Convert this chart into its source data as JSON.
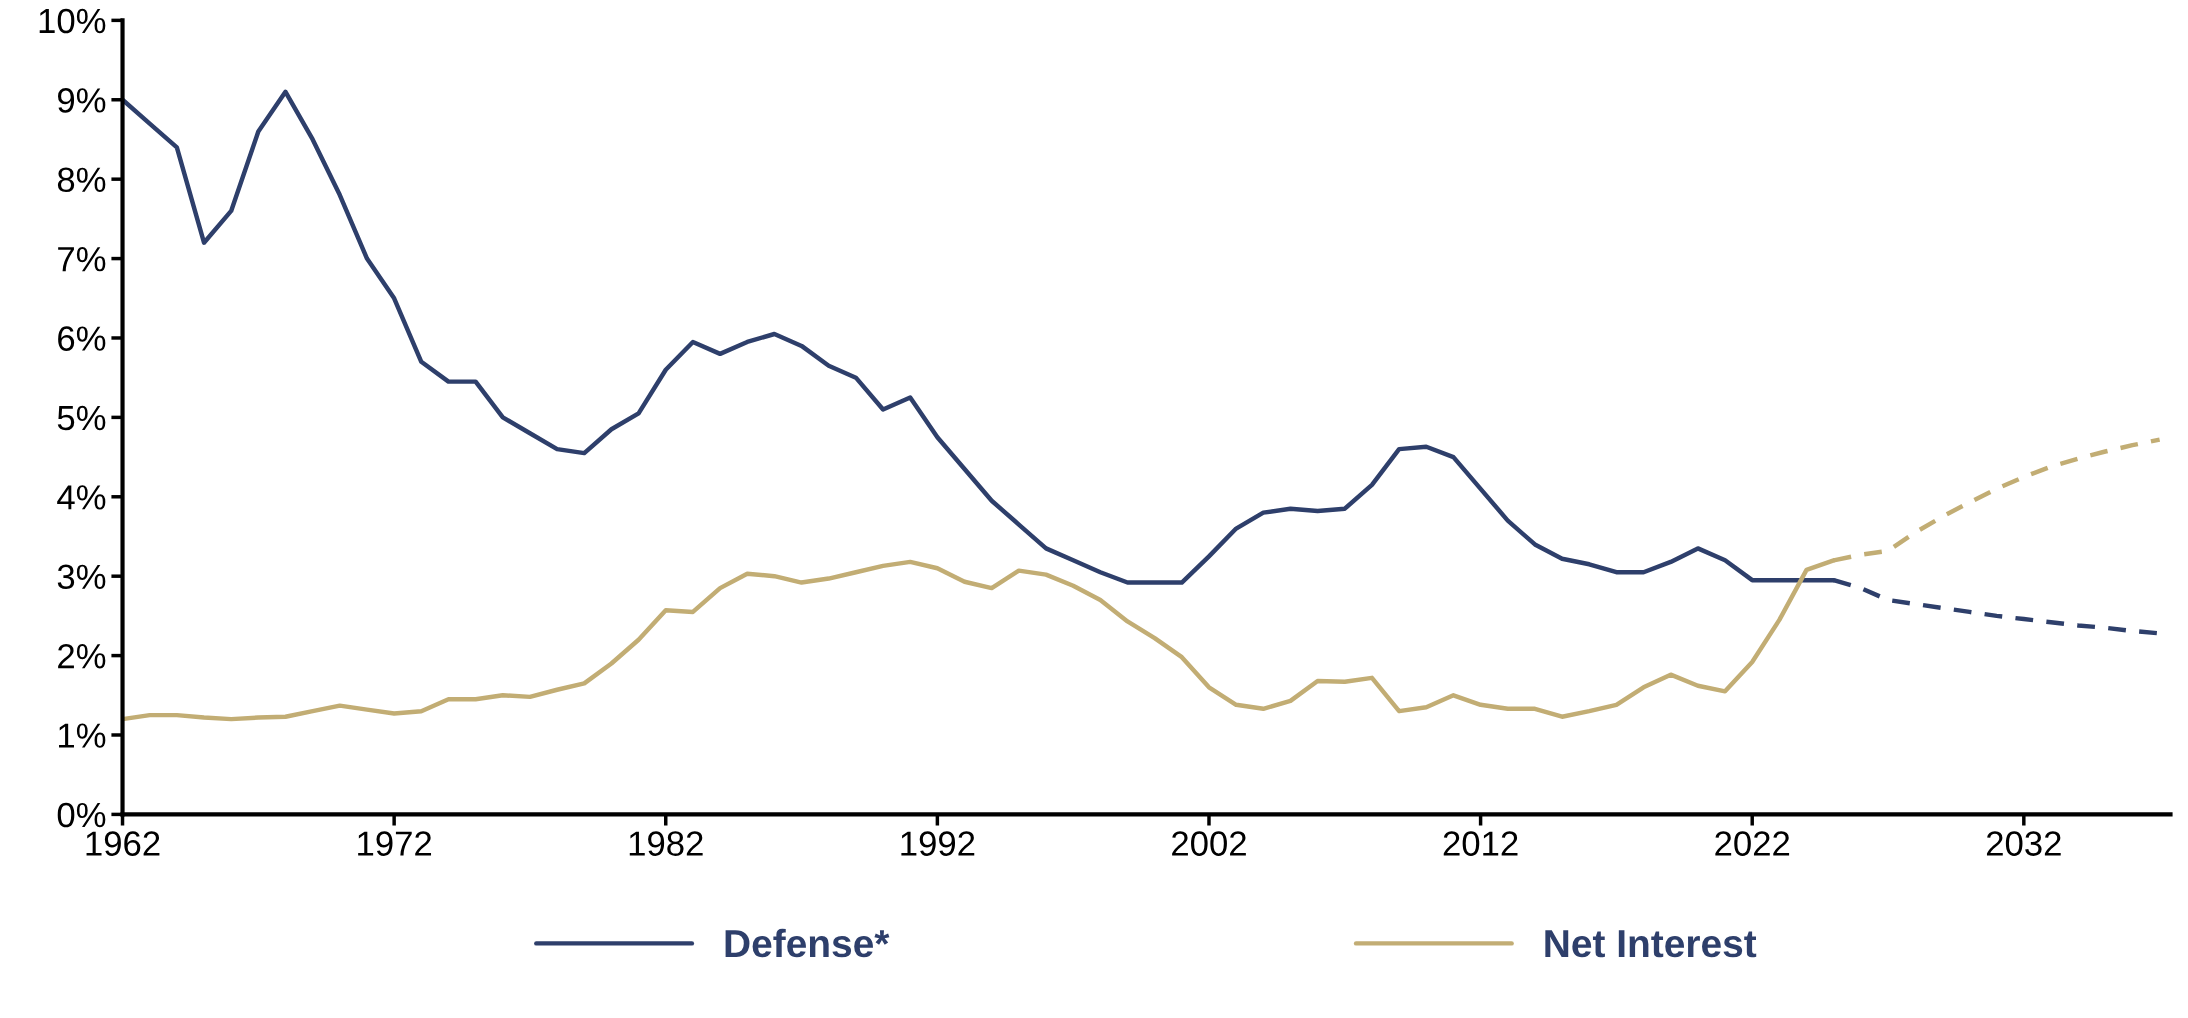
{
  "chart_data": {
    "type": "line",
    "xlim": [
      1962,
      2037.4
    ],
    "xticks": [
      1962,
      1972,
      1982,
      1992,
      2002,
      2012,
      2022,
      2032
    ],
    "ylim": [
      0,
      10
    ],
    "yticks": [
      {
        "value": 0,
        "label": "0%"
      },
      {
        "value": 1,
        "label": "1%"
      },
      {
        "value": 2,
        "label": "2%"
      },
      {
        "value": 3,
        "label": "3%"
      },
      {
        "value": 4,
        "label": "4%"
      },
      {
        "value": 5,
        "label": "5%"
      },
      {
        "value": 6,
        "label": "6%"
      },
      {
        "value": 7,
        "label": "7%"
      },
      {
        "value": 8,
        "label": "8%"
      },
      {
        "value": 9,
        "label": "9%"
      },
      {
        "value": 10,
        "label": "10%"
      }
    ],
    "grid": false,
    "legend": "bottom",
    "marker": "none",
    "series": [
      {
        "name": "Defense*",
        "color": "#2e3f6b",
        "line_style": "solid",
        "x": [
          1962,
          1963,
          1964,
          1965,
          1966,
          1967,
          1968,
          1969,
          1970,
          1971,
          1972,
          1973,
          1974,
          1975,
          1976,
          1977,
          1978,
          1979,
          1980,
          1981,
          1982,
          1983,
          1984,
          1985,
          1986,
          1987,
          1988,
          1989,
          1990,
          1991,
          1992,
          1993,
          1994,
          1995,
          1996,
          1997,
          1998,
          1999,
          2000,
          2001,
          2002,
          2003,
          2004,
          2005,
          2006,
          2007,
          2008,
          2009,
          2010,
          2011,
          2012,
          2013,
          2014,
          2015,
          2016,
          2017,
          2018,
          2019,
          2020,
          2021,
          2022,
          2023,
          2024,
          2025
        ],
        "values": [
          9.0,
          8.7,
          8.4,
          7.2,
          7.6,
          8.6,
          9.1,
          8.5,
          7.8,
          7.0,
          6.5,
          5.7,
          5.45,
          5.45,
          5.0,
          4.8,
          4.6,
          4.55,
          4.85,
          5.05,
          5.6,
          5.95,
          5.8,
          5.95,
          6.05,
          5.9,
          5.65,
          5.5,
          5.1,
          5.25,
          4.75,
          4.35,
          3.95,
          3.65,
          3.35,
          3.2,
          3.05,
          2.92,
          2.92,
          2.92,
          3.25,
          3.6,
          3.8,
          3.85,
          3.82,
          3.85,
          4.15,
          4.6,
          4.63,
          4.5,
          4.1,
          3.7,
          3.4,
          3.22,
          3.15,
          3.05,
          3.05,
          3.18,
          3.35,
          3.2,
          2.95,
          2.95,
          2.95,
          2.95
        ]
      },
      {
        "name": "Net Interest",
        "color": "#c2ad74",
        "line_style": "solid",
        "x": [
          1962,
          1963,
          1964,
          1965,
          1966,
          1967,
          1968,
          1969,
          1970,
          1971,
          1972,
          1973,
          1974,
          1975,
          1976,
          1977,
          1978,
          1979,
          1980,
          1981,
          1982,
          1983,
          1984,
          1985,
          1986,
          1987,
          1988,
          1989,
          1990,
          1991,
          1992,
          1993,
          1994,
          1995,
          1996,
          1997,
          1998,
          1999,
          2000,
          2001,
          2002,
          2003,
          2004,
          2005,
          2006,
          2007,
          2008,
          2009,
          2010,
          2011,
          2012,
          2013,
          2014,
          2015,
          2016,
          2017,
          2018,
          2019,
          2020,
          2021,
          2022,
          2023,
          2024,
          2025
        ],
        "values": [
          1.2,
          1.25,
          1.25,
          1.22,
          1.2,
          1.22,
          1.23,
          1.3,
          1.37,
          1.32,
          1.27,
          1.3,
          1.45,
          1.45,
          1.5,
          1.48,
          1.57,
          1.65,
          1.9,
          2.2,
          2.57,
          2.55,
          2.85,
          3.03,
          3.0,
          2.92,
          2.97,
          3.05,
          3.13,
          3.18,
          3.1,
          2.93,
          2.85,
          3.07,
          3.02,
          2.88,
          2.7,
          2.43,
          2.22,
          1.98,
          1.6,
          1.38,
          1.33,
          1.43,
          1.68,
          1.67,
          1.72,
          1.3,
          1.35,
          1.5,
          1.38,
          1.33,
          1.33,
          1.23,
          1.3,
          1.38,
          1.6,
          1.76,
          1.62,
          1.55,
          1.92,
          2.45,
          3.08,
          3.2
        ]
      },
      {
        "color": "#2e3f6b",
        "line_style": "dashed",
        "x": [
          2025,
          2026,
          2027,
          2028,
          2029,
          2030,
          2031,
          2032,
          2033,
          2034,
          2035,
          2036,
          2037
        ],
        "values": [
          2.95,
          2.85,
          2.7,
          2.65,
          2.6,
          2.55,
          2.5,
          2.46,
          2.42,
          2.38,
          2.35,
          2.31,
          2.28
        ]
      },
      {
        "color": "#c2ad74",
        "line_style": "dashed",
        "x": [
          2025,
          2026,
          2027,
          2028,
          2029,
          2030,
          2031,
          2032,
          2033,
          2034,
          2035,
          2036,
          2037
        ],
        "values": [
          3.2,
          3.27,
          3.32,
          3.55,
          3.75,
          3.93,
          4.1,
          4.25,
          4.38,
          4.48,
          4.57,
          4.65,
          4.72
        ]
      }
    ]
  }
}
